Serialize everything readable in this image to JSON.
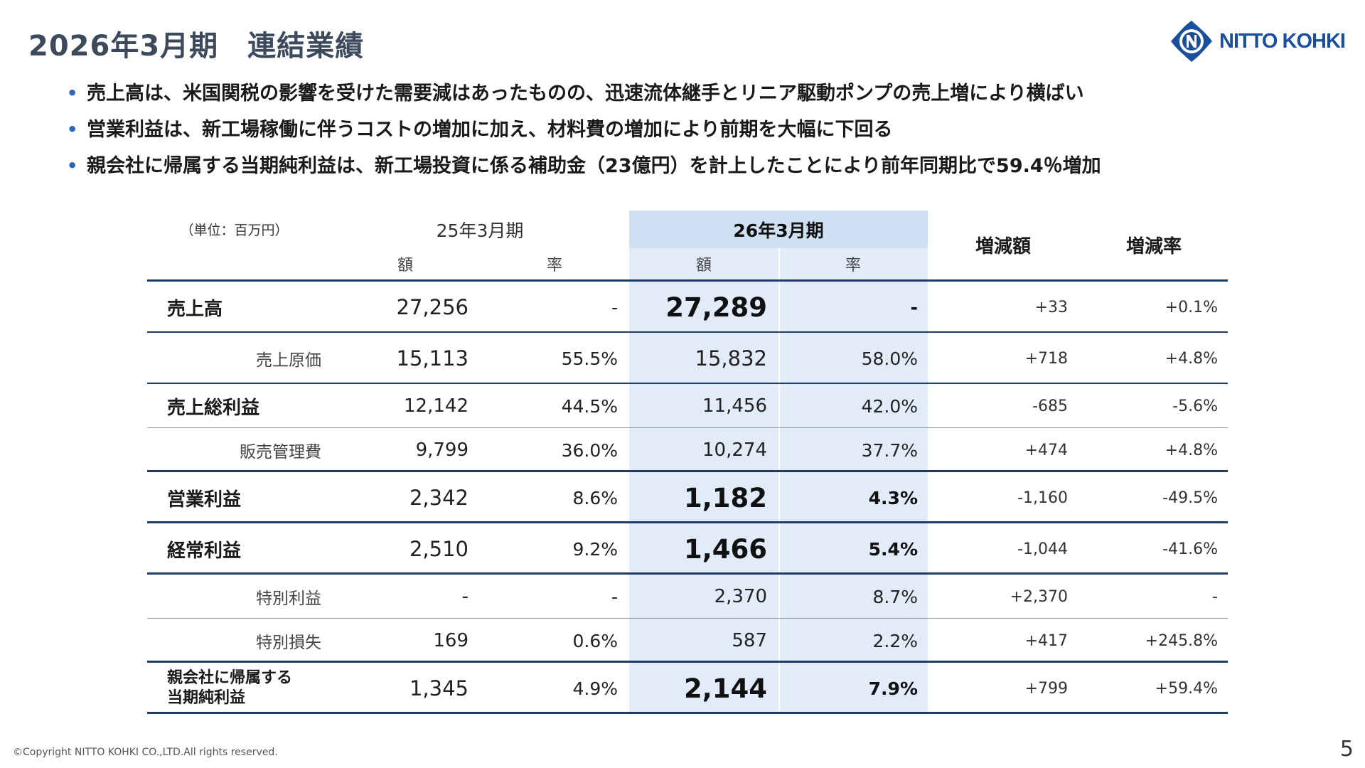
{
  "title": "2026年3月期　連結業績",
  "logo": {
    "text": "NITTO KOHKI"
  },
  "bullets": [
    "売上高は、米国関税の影響を受けた需要減はあったものの、迅速流体継手とリニア駆動ポンプの売上増により横ばい",
    "営業利益は、新工場稼働に伴うコストの増加に加え、材料費の増加により前期を大幅に下回る",
    "親会社に帰属する当期純利益は、新工場投資に係る補助金（23億円）を計上したことにより前年同期比で59.4％増加"
  ],
  "table": {
    "unit": "（単位：百万円）",
    "prev_period": "25年3月期",
    "cur_period": "26年3月期",
    "col_amount": "額",
    "col_ratio": "率",
    "diff_amount": "増減額",
    "diff_ratio": "増減率",
    "rows": [
      {
        "label": "売上高",
        "prev_amount": "27,256",
        "prev_ratio": "-",
        "cur_amount": "27,289",
        "cur_ratio": "-",
        "diff_amount": "+33",
        "diff_ratio": "+0.1%"
      },
      {
        "label": "売上原価",
        "prev_amount": "15,113",
        "prev_ratio": "55.5%",
        "cur_amount": "15,832",
        "cur_ratio": "58.0%",
        "diff_amount": "+718",
        "diff_ratio": "+4.8%"
      },
      {
        "label": "売上総利益",
        "prev_amount": "12,142",
        "prev_ratio": "44.5%",
        "cur_amount": "11,456",
        "cur_ratio": "42.0%",
        "diff_amount": "-685",
        "diff_ratio": "-5.6%"
      },
      {
        "label": "販売管理費",
        "prev_amount": "9,799",
        "prev_ratio": "36.0%",
        "cur_amount": "10,274",
        "cur_ratio": "37.7%",
        "diff_amount": "+474",
        "diff_ratio": "+4.8%"
      },
      {
        "label": "営業利益",
        "prev_amount": "2,342",
        "prev_ratio": "8.6%",
        "cur_amount": "1,182",
        "cur_ratio": "4.3%",
        "diff_amount": "-1,160",
        "diff_ratio": "-49.5%"
      },
      {
        "label": "経常利益",
        "prev_amount": "2,510",
        "prev_ratio": "9.2%",
        "cur_amount": "1,466",
        "cur_ratio": "5.4%",
        "diff_amount": "-1,044",
        "diff_ratio": "-41.6%"
      },
      {
        "label": "特別利益",
        "prev_amount": "-",
        "prev_ratio": "-",
        "cur_amount": "2,370",
        "cur_ratio": "8.7%",
        "diff_amount": "+2,370",
        "diff_ratio": "-"
      },
      {
        "label": "特別損失",
        "prev_amount": "169",
        "prev_ratio": "0.6%",
        "cur_amount": "587",
        "cur_ratio": "2.2%",
        "diff_amount": "+417",
        "diff_ratio": "+245.8%"
      },
      {
        "label_line1": "親会社に帰属する",
        "label_line2": "当期純利益",
        "prev_amount": "1,345",
        "prev_ratio": "4.9%",
        "cur_amount": "2,144",
        "cur_ratio": "7.9%",
        "diff_amount": "+799",
        "diff_ratio": "+59.4%"
      }
    ]
  },
  "footer": "©Copyright NITTO KOHKI CO.,LTD.All rights reserved.",
  "page_number": "5",
  "colors": {
    "title": "#3d4a5c",
    "bullet": "#2c67b5",
    "highlight": "#e2ecf8",
    "highlight_header": "#cfe0f2",
    "rule": "#1f3a63",
    "logo": "#1b4f9c"
  }
}
